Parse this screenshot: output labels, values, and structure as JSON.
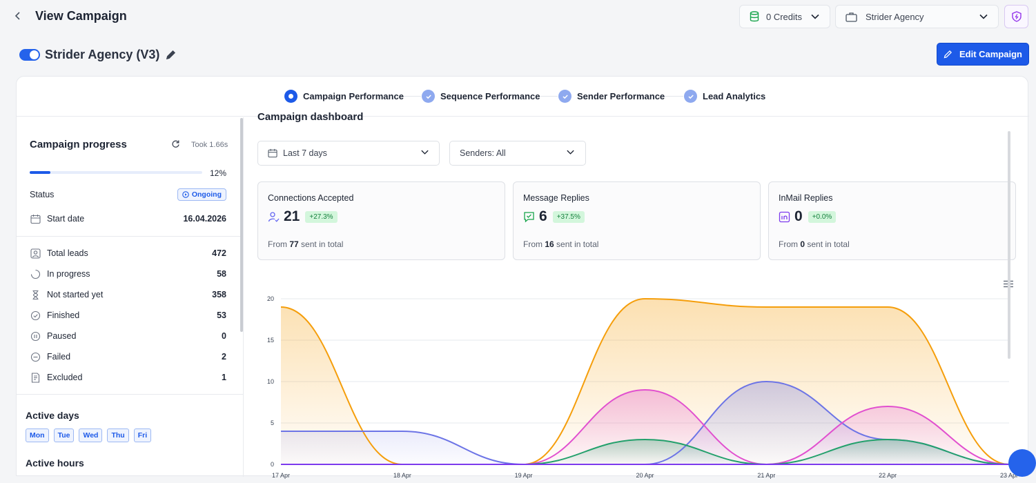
{
  "header": {
    "back_icon": "chevron-left-icon",
    "title": "View Campaign",
    "credits_label": "0 Credits",
    "agency_label": "Strider Agency"
  },
  "campaign": {
    "name": "Strider Agency (V3)",
    "active": true,
    "edit_label": "Edit Campaign"
  },
  "steps": [
    {
      "label": "Campaign Performance",
      "state": "active"
    },
    {
      "label": "Sequence Performance",
      "state": "done"
    },
    {
      "label": "Sender Performance",
      "state": "done"
    },
    {
      "label": "Lead Analytics",
      "state": "done"
    }
  ],
  "sidebar": {
    "title": "Campaign progress",
    "took": "Took 1.66s",
    "progress_pct_label": "12%",
    "progress_fraction": 0.12,
    "status_label": "Status",
    "status_value": "Ongoing",
    "start_date_label": "Start date",
    "start_date_value": "16.04.2026",
    "stats": [
      {
        "label": "Total leads",
        "value": "472",
        "icon": "user-square-icon"
      },
      {
        "label": "In progress",
        "value": "58",
        "icon": "loading-circle-icon"
      },
      {
        "label": "Not started yet",
        "value": "358",
        "icon": "hourglass-icon"
      },
      {
        "label": "Finished",
        "value": "53",
        "icon": "check-circle-icon"
      },
      {
        "label": "Paused",
        "value": "0",
        "icon": "pause-circle-icon"
      },
      {
        "label": "Failed",
        "value": "2",
        "icon": "minus-circle-icon"
      },
      {
        "label": "Excluded",
        "value": "1",
        "icon": "document-x-icon"
      }
    ],
    "active_days_title": "Active days",
    "active_days": [
      "Mon",
      "Tue",
      "Wed",
      "Thu",
      "Fri"
    ],
    "active_hours_title": "Active hours"
  },
  "dashboard": {
    "title": "Campaign dashboard",
    "date_filter": "Last 7 days",
    "senders_filter": "Senders: All",
    "kpis": [
      {
        "label": "Connections Accepted",
        "value": "21",
        "change": "+27.3%",
        "from_prefix": "From",
        "from_value": "77",
        "from_suffix": "sent in total",
        "icon": "user-check-icon",
        "color": "#6366f1"
      },
      {
        "label": "Message Replies",
        "value": "6",
        "change": "+37.5%",
        "from_prefix": "From",
        "from_value": "16",
        "from_suffix": "sent in total",
        "icon": "message-check-icon",
        "color": "#16a34a"
      },
      {
        "label": "InMail Replies",
        "value": "0",
        "change": "+0.0%",
        "from_prefix": "From",
        "from_value": "0",
        "from_suffix": "sent in total",
        "icon": "linkedin-icon",
        "color": "#7c3aed"
      }
    ]
  },
  "chart_data": {
    "type": "area",
    "categories": [
      "17 Apr",
      "18 Apr",
      "19 Apr",
      "20 Apr",
      "21 Apr",
      "22 Apr",
      "23 Apr"
    ],
    "ylim": [
      0,
      20
    ],
    "yticks": [
      0,
      5,
      10,
      15,
      20
    ],
    "grid": true,
    "series": [
      {
        "color": "#f59e0b",
        "values": [
          19,
          0,
          0,
          20,
          19,
          19,
          0
        ]
      },
      {
        "color": "#6c74e6",
        "values": [
          4,
          4,
          0,
          0,
          10,
          3,
          0
        ]
      },
      {
        "color": "#e14fcf",
        "values": [
          0,
          0,
          0,
          9,
          0,
          7,
          0
        ]
      },
      {
        "color": "#22a06b",
        "values": [
          0,
          0,
          0,
          3,
          0,
          3,
          0
        ]
      },
      {
        "color": "#7c3aed",
        "values": [
          0,
          0,
          0,
          0,
          0,
          0,
          0
        ]
      }
    ]
  }
}
